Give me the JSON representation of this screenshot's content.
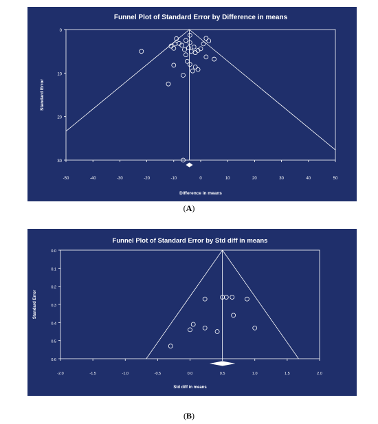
{
  "captions": {
    "a": "A",
    "b": "B"
  },
  "colors": {
    "panel_bg": "#1f2f6b",
    "line": "#ffffff",
    "text": "#ffffff"
  },
  "chart_data": [
    {
      "type": "scatter",
      "title": "Funnel Plot of Standard Error by Difference in means",
      "xlabel": "Difference in means",
      "ylabel": "Standard Error",
      "xlim": [
        -50,
        50
      ],
      "ylim": [
        0,
        30
      ],
      "y_inverted": true,
      "xticks": [
        -50,
        -40,
        -30,
        -20,
        -10,
        0,
        10,
        20,
        30,
        40,
        50
      ],
      "xtick_labels": [
        "-50",
        "-40",
        "-30",
        "-20",
        "-10",
        "0",
        "10",
        "20",
        "30",
        "40",
        "50"
      ],
      "yticks": [
        0,
        10,
        20,
        30
      ],
      "ytick_labels": [
        "0",
        "10",
        "20",
        "30"
      ],
      "funnel_center": -4.2,
      "summary_diamond": {
        "center": -4.2
      },
      "grid": false,
      "points": [
        {
          "x": -22,
          "y": 5.0
        },
        {
          "x": -12,
          "y": 12.5
        },
        {
          "x": -11,
          "y": 3.8
        },
        {
          "x": -10,
          "y": 4.3
        },
        {
          "x": -10,
          "y": 8.2
        },
        {
          "x": -9.5,
          "y": 3.3
        },
        {
          "x": -9,
          "y": 2.1
        },
        {
          "x": -8,
          "y": 3.2
        },
        {
          "x": -7,
          "y": 3.6
        },
        {
          "x": -6.5,
          "y": 10.5
        },
        {
          "x": -6,
          "y": 4.6
        },
        {
          "x": -5.5,
          "y": 2.5
        },
        {
          "x": -5.5,
          "y": 5.8
        },
        {
          "x": -5,
          "y": 7.3
        },
        {
          "x": -4.5,
          "y": 4.2
        },
        {
          "x": -4,
          "y": 1.3
        },
        {
          "x": -4,
          "y": 3.0
        },
        {
          "x": -4,
          "y": 8.0
        },
        {
          "x": -3.5,
          "y": 5.0
        },
        {
          "x": -3,
          "y": 9.5
        },
        {
          "x": -2.5,
          "y": 4.0
        },
        {
          "x": -2,
          "y": 5.3
        },
        {
          "x": -2,
          "y": 8.6
        },
        {
          "x": -1,
          "y": 4.8
        },
        {
          "x": -1,
          "y": 9.2
        },
        {
          "x": 0,
          "y": 4.4
        },
        {
          "x": 1,
          "y": 3.3
        },
        {
          "x": 2,
          "y": 2.0
        },
        {
          "x": 2,
          "y": 6.3
        },
        {
          "x": 3,
          "y": 2.6
        },
        {
          "x": 5,
          "y": 6.8
        },
        {
          "x": -6.5,
          "y": 30.0
        }
      ]
    },
    {
      "type": "scatter",
      "title": "Funnel Plot of Standard Error by Std diff in means",
      "xlabel": "Std diff in means",
      "ylabel": "Standard Error",
      "xlim": [
        -2.0,
        2.0
      ],
      "ylim": [
        0,
        0.6
      ],
      "y_inverted": true,
      "xticks": [
        -2.0,
        -1.5,
        -1.0,
        -0.5,
        0.0,
        0.5,
        1.0,
        1.5,
        2.0
      ],
      "xtick_labels": [
        "-2.0",
        "-1.5",
        "-1.0",
        "-0.5",
        "0.0",
        "0.5",
        "1.0",
        "1.5",
        "2.0"
      ],
      "yticks": [
        0.0,
        0.1,
        0.2,
        0.3,
        0.4,
        0.5,
        0.6
      ],
      "ytick_labels": [
        "0.0",
        "0.1",
        "0.2",
        "0.3",
        "0.4",
        "0.5",
        "0.6"
      ],
      "funnel_center": 0.5,
      "summary_diamond": {
        "center": 0.5,
        "low": 0.3,
        "high": 0.7
      },
      "grid": false,
      "points": [
        {
          "x": -0.3,
          "y": 0.53
        },
        {
          "x": 0.0,
          "y": 0.44
        },
        {
          "x": 0.05,
          "y": 0.41
        },
        {
          "x": 0.23,
          "y": 0.27
        },
        {
          "x": 0.23,
          "y": 0.43
        },
        {
          "x": 0.42,
          "y": 0.45
        },
        {
          "x": 0.5,
          "y": 0.26
        },
        {
          "x": 0.56,
          "y": 0.26
        },
        {
          "x": 0.65,
          "y": 0.26
        },
        {
          "x": 0.67,
          "y": 0.36
        },
        {
          "x": 0.88,
          "y": 0.27
        },
        {
          "x": 1.0,
          "y": 0.43
        }
      ]
    }
  ]
}
